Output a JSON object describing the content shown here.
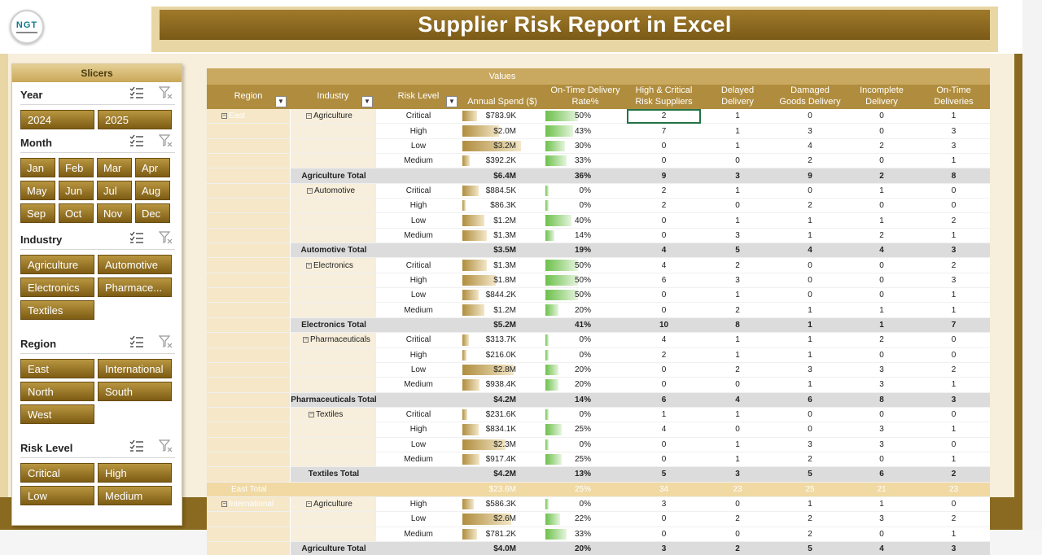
{
  "title": "Supplier Risk Report in Excel",
  "logo_text": "NGT",
  "slicers": {
    "header": "Slicers",
    "year": {
      "title": "Year",
      "items": [
        "2024",
        "2025"
      ]
    },
    "month": {
      "title": "Month",
      "items": [
        "Jan",
        "Feb",
        "Mar",
        "Apr",
        "May",
        "Jun",
        "Jul",
        "Aug",
        "Sep",
        "Oct",
        "Nov",
        "Dec"
      ]
    },
    "industry": {
      "title": "Industry",
      "items": [
        "Agriculture",
        "Automotive",
        "Electronics",
        "Pharmace...",
        "Textiles"
      ]
    },
    "region": {
      "title": "Region",
      "items": [
        "East",
        "International",
        "North",
        "South",
        "West"
      ]
    },
    "risk": {
      "title": "Risk Level",
      "items": [
        "Critical",
        "High",
        "Low",
        "Medium"
      ]
    }
  },
  "pivot": {
    "values_label": "Values",
    "headers": [
      "Region",
      "Industry",
      "Risk Level",
      "Annual Spend ($)",
      "On-Time Delivery Rate%",
      "High & Critical Risk Suppliers",
      "Delayed Delivery",
      "Damaged Goods Delivery",
      "Incomplete Delivery",
      "On-Time Deliveries"
    ],
    "rows": [
      {
        "region": "East",
        "industry": "Agriculture",
        "risk": "Critical",
        "spend": "$783.9K",
        "sf": 0.12,
        "otd": "50%",
        "of": 0.5,
        "n": [
          "2",
          "1",
          "0",
          "0",
          "1"
        ],
        "sel": true
      },
      {
        "risk": "High",
        "spend": "$2.0M",
        "sf": 0.3,
        "otd": "43%",
        "of": 0.43,
        "n": [
          "7",
          "1",
          "3",
          "0",
          "3"
        ]
      },
      {
        "risk": "Low",
        "spend": "$3.2M",
        "sf": 0.48,
        "otd": "30%",
        "of": 0.3,
        "n": [
          "0",
          "1",
          "4",
          "2",
          "3"
        ]
      },
      {
        "risk": "Medium",
        "spend": "$392.2K",
        "sf": 0.06,
        "otd": "33%",
        "of": 0.33,
        "n": [
          "0",
          "0",
          "2",
          "0",
          "1"
        ]
      },
      {
        "total": "Agriculture Total",
        "spend": "$6.4M",
        "otd": "36%",
        "n": [
          "9",
          "3",
          "9",
          "2",
          "8"
        ]
      },
      {
        "industry": "Automotive",
        "risk": "Critical",
        "spend": "$884.5K",
        "sf": 0.13,
        "otd": "0%",
        "of": 0,
        "n": [
          "2",
          "1",
          "0",
          "1",
          "0"
        ]
      },
      {
        "risk": "High",
        "spend": "$86.3K",
        "sf": 0.02,
        "otd": "0%",
        "of": 0,
        "n": [
          "2",
          "0",
          "2",
          "0",
          "0"
        ]
      },
      {
        "risk": "Low",
        "spend": "$1.2M",
        "sf": 0.18,
        "otd": "40%",
        "of": 0.4,
        "n": [
          "0",
          "1",
          "1",
          "1",
          "2"
        ]
      },
      {
        "risk": "Medium",
        "spend": "$1.3M",
        "sf": 0.2,
        "otd": "14%",
        "of": 0.14,
        "n": [
          "0",
          "3",
          "1",
          "2",
          "1"
        ]
      },
      {
        "total": "Automotive Total",
        "spend": "$3.5M",
        "otd": "19%",
        "n": [
          "4",
          "5",
          "4",
          "4",
          "3"
        ]
      },
      {
        "industry": "Electronics",
        "risk": "Critical",
        "spend": "$1.3M",
        "sf": 0.2,
        "otd": "50%",
        "of": 0.5,
        "n": [
          "4",
          "2",
          "0",
          "0",
          "2"
        ]
      },
      {
        "risk": "High",
        "spend": "$1.8M",
        "sf": 0.27,
        "otd": "50%",
        "of": 0.5,
        "n": [
          "6",
          "3",
          "0",
          "0",
          "3"
        ]
      },
      {
        "risk": "Low",
        "spend": "$844.2K",
        "sf": 0.13,
        "otd": "50%",
        "of": 0.5,
        "n": [
          "0",
          "1",
          "0",
          "0",
          "1"
        ]
      },
      {
        "risk": "Medium",
        "spend": "$1.2M",
        "sf": 0.18,
        "otd": "20%",
        "of": 0.2,
        "n": [
          "0",
          "2",
          "1",
          "1",
          "1"
        ]
      },
      {
        "total": "Electronics Total",
        "spend": "$5.2M",
        "otd": "41%",
        "n": [
          "10",
          "8",
          "1",
          "1",
          "7"
        ]
      },
      {
        "industry": "Pharmaceuticals",
        "risk": "Critical",
        "spend": "$313.7K",
        "sf": 0.05,
        "otd": "0%",
        "of": 0,
        "n": [
          "4",
          "1",
          "1",
          "2",
          "0"
        ]
      },
      {
        "risk": "High",
        "spend": "$216.0K",
        "sf": 0.03,
        "otd": "0%",
        "of": 0,
        "n": [
          "2",
          "1",
          "1",
          "0",
          "0"
        ]
      },
      {
        "risk": "Low",
        "spend": "$2.8M",
        "sf": 0.42,
        "otd": "20%",
        "of": 0.2,
        "n": [
          "0",
          "2",
          "3",
          "3",
          "2"
        ]
      },
      {
        "risk": "Medium",
        "spend": "$938.4K",
        "sf": 0.14,
        "otd": "20%",
        "of": 0.2,
        "n": [
          "0",
          "0",
          "1",
          "3",
          "1"
        ]
      },
      {
        "total": "Pharmaceuticals Total",
        "spend": "$4.2M",
        "otd": "14%",
        "n": [
          "6",
          "4",
          "6",
          "8",
          "3"
        ]
      },
      {
        "industry": "Textiles",
        "risk": "Critical",
        "spend": "$231.6K",
        "sf": 0.04,
        "otd": "0%",
        "of": 0,
        "n": [
          "1",
          "1",
          "0",
          "0",
          "0"
        ]
      },
      {
        "risk": "High",
        "spend": "$834.1K",
        "sf": 0.13,
        "otd": "25%",
        "of": 0.25,
        "n": [
          "4",
          "0",
          "0",
          "3",
          "1"
        ]
      },
      {
        "risk": "Low",
        "spend": "$2.3M",
        "sf": 0.35,
        "otd": "0%",
        "of": 0,
        "n": [
          "0",
          "1",
          "3",
          "3",
          "0"
        ]
      },
      {
        "risk": "Medium",
        "spend": "$917.4K",
        "sf": 0.14,
        "otd": "25%",
        "of": 0.25,
        "n": [
          "0",
          "1",
          "2",
          "0",
          "1"
        ]
      },
      {
        "total": "Textiles Total",
        "spend": "$4.2M",
        "otd": "13%",
        "n": [
          "5",
          "3",
          "5",
          "6",
          "2"
        ]
      },
      {
        "grand": "East Total",
        "spend": "$23.6M",
        "otd": "25%",
        "n": [
          "34",
          "23",
          "25",
          "21",
          "23"
        ]
      },
      {
        "region": "International",
        "industry": "Agriculture",
        "risk": "High",
        "spend": "$586.3K",
        "sf": 0.09,
        "otd": "0%",
        "of": 0,
        "n": [
          "3",
          "0",
          "1",
          "1",
          "0"
        ]
      },
      {
        "risk": "Low",
        "spend": "$2.6M",
        "sf": 0.4,
        "otd": "22%",
        "of": 0.22,
        "n": [
          "0",
          "2",
          "2",
          "3",
          "2"
        ]
      },
      {
        "risk": "Medium",
        "spend": "$781.2K",
        "sf": 0.12,
        "otd": "33%",
        "of": 0.33,
        "n": [
          "0",
          "0",
          "2",
          "0",
          "1"
        ]
      },
      {
        "total": "Agriculture Total",
        "spend": "$4.0M",
        "otd": "20%",
        "n": [
          "3",
          "2",
          "5",
          "4",
          "3"
        ]
      }
    ]
  }
}
